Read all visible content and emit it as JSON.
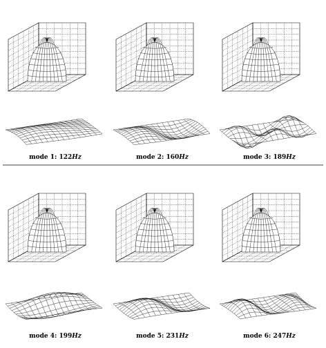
{
  "modes": [
    {
      "label": "mode 1:",
      "freq": "122",
      "unit": "Hz"
    },
    {
      "label": "mode 2:",
      "freq": "160",
      "unit": "Hz"
    },
    {
      "label": "mode 3:",
      "freq": "189",
      "unit": "Hz"
    },
    {
      "label": "mode 4:",
      "freq": "199",
      "unit": "Hz"
    },
    {
      "label": "mode 5:",
      "freq": "231",
      "unit": "Hz"
    },
    {
      "label": "mode 6:",
      "freq": "247",
      "unit": "Hz"
    }
  ]
}
